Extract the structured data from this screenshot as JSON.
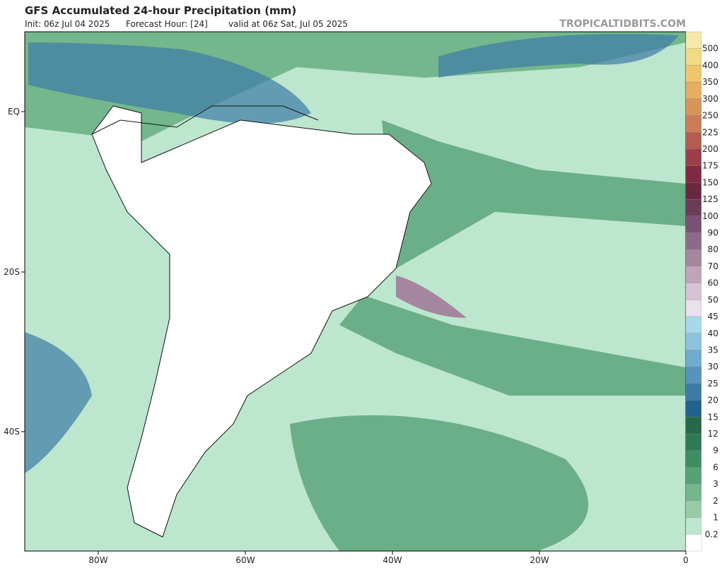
{
  "header": {
    "title": "GFS Accumulated 24-hour Precipitation (mm)",
    "init": "Init: 06z Jul 04 2025",
    "forecast_hour": "Forecast Hour: [24]",
    "valid": "valid at 06z Sat, Jul 05 2025",
    "site": "TROPICALTIDBITS.COM"
  },
  "axes": {
    "lat_labels": [
      "EQ",
      "20S",
      "40S"
    ],
    "lon_labels": [
      "80W",
      "60W",
      "40W",
      "20W",
      "0"
    ]
  },
  "colorbar": {
    "labels": [
      "500",
      "400",
      "350",
      "300",
      "250",
      "225",
      "200",
      "175",
      "150",
      "125",
      "100",
      "90",
      "80",
      "70",
      "60",
      "50",
      "45",
      "40",
      "35",
      "30",
      "25",
      "20",
      "15",
      "12",
      "9",
      "6",
      "3",
      "2",
      "1",
      "0.2"
    ],
    "colors": [
      "#f6e9a8",
      "#f3d981",
      "#efc66d",
      "#e6ae62",
      "#d8955a",
      "#c97d56",
      "#b15d4f",
      "#9a4048",
      "#7e2a42",
      "#66293f",
      "#6b3b58",
      "#7b5173",
      "#8d6a8b",
      "#a5869f",
      "#bfa4bb",
      "#d8c3d6",
      "#ece0ee",
      "#a9d7ec",
      "#8dc3df",
      "#71abd0",
      "#5793bb",
      "#3d7ba7",
      "#1f6290",
      "#25684a",
      "#2f7a55",
      "#3e8d62",
      "#56a176",
      "#74b78d",
      "#97cca8",
      "#bde6cf",
      "#ffffff"
    ]
  }
}
